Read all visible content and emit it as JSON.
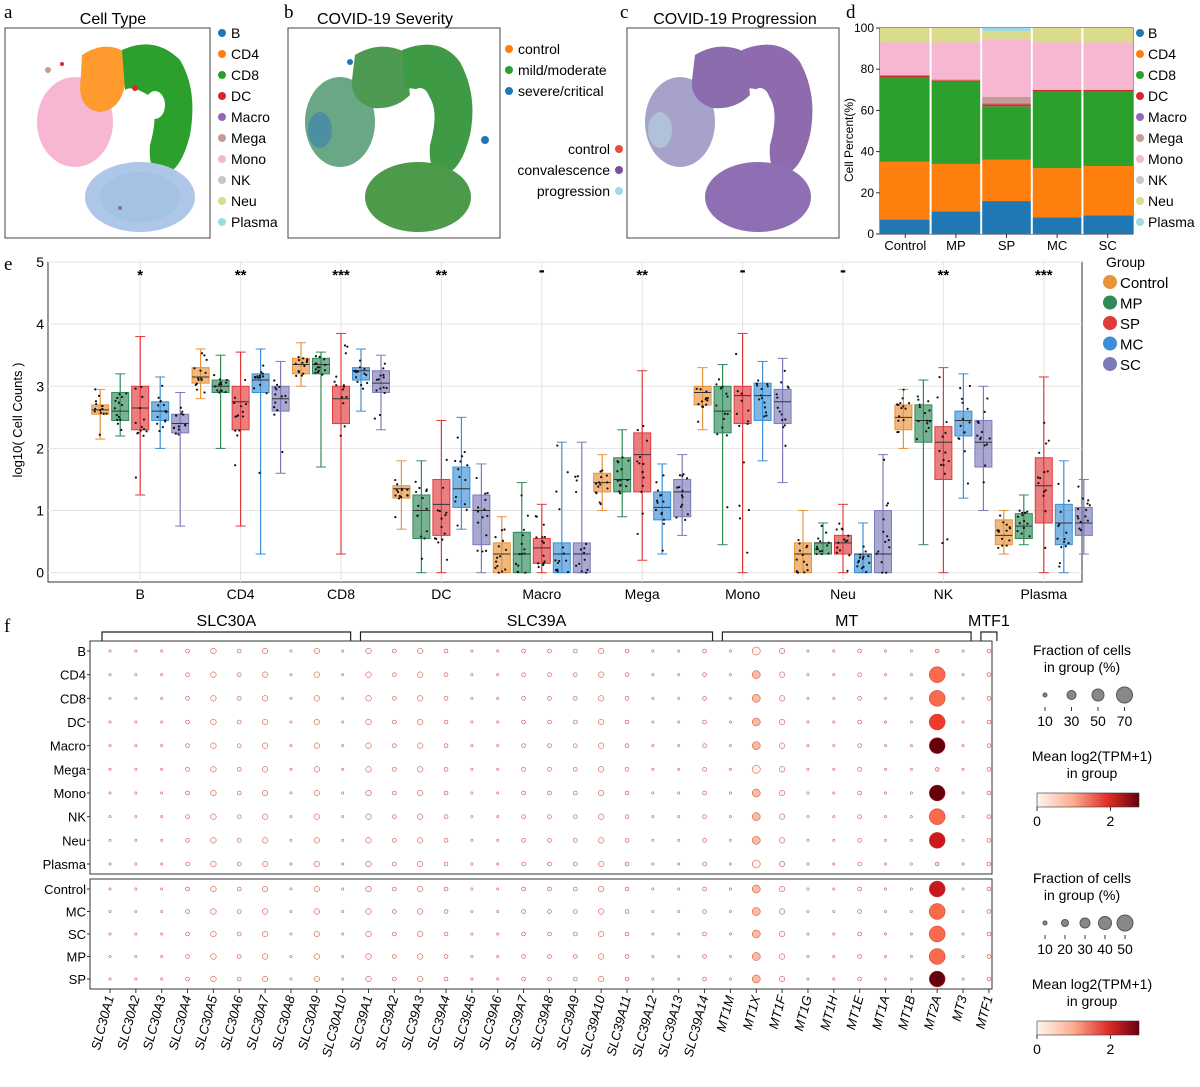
{
  "panels": {
    "a": {
      "letter": "a",
      "title": "Cell Type",
      "legend": [
        {
          "label": "B",
          "color": "#1f77b4"
        },
        {
          "label": "CD4",
          "color": "#ff7f0e"
        },
        {
          "label": "CD8",
          "color": "#2ca02c"
        },
        {
          "label": "DC",
          "color": "#d62728"
        },
        {
          "label": "Macro",
          "color": "#9467bd"
        },
        {
          "label": "Mega",
          "color": "#c49c94"
        },
        {
          "label": "Mono",
          "color": "#f7b6d2"
        },
        {
          "label": "NK",
          "color": "#c7c7c7"
        },
        {
          "label": "Neu",
          "color": "#dbdb8d"
        },
        {
          "label": "Plasma",
          "color": "#9edae5"
        }
      ]
    },
    "b": {
      "letter": "b",
      "title": "COVID-19 Severity",
      "legend": [
        {
          "label": "control",
          "color": "#ff7f0e"
        },
        {
          "label": "mild/moderate",
          "color": "#2ca02c"
        },
        {
          "label": "severe/critical",
          "color": "#1f77b4"
        }
      ]
    },
    "c": {
      "letter": "c",
      "title": "COVID-19 Progression",
      "legend": [
        {
          "label": "control",
          "color": "#e74c3c"
        },
        {
          "label": "convalescence",
          "color": "#7b4f9e"
        },
        {
          "label": "progression",
          "color": "#9edae5"
        }
      ]
    },
    "d": {
      "letter": "d"
    },
    "e": {
      "letter": "e"
    },
    "f": {
      "letter": "f"
    }
  },
  "chart_data": [
    {
      "panel": "d",
      "type": "bar",
      "stacked": true,
      "categories": [
        "Control",
        "MP",
        "SP",
        "MC",
        "SC"
      ],
      "ylabel": "Cell Percent(%)",
      "ylim": [
        0,
        100
      ],
      "yticks": [
        0,
        20,
        40,
        60,
        80,
        100
      ],
      "legend_position": "right",
      "series": [
        {
          "name": "B",
          "color": "#1f77b4",
          "values": [
            7,
            11,
            16,
            8,
            9
          ]
        },
        {
          "name": "CD4",
          "color": "#ff7f0e",
          "values": [
            28,
            23,
            20,
            24,
            24
          ]
        },
        {
          "name": "CD8",
          "color": "#2ca02c",
          "values": [
            41,
            40,
            26,
            37,
            36
          ]
        },
        {
          "name": "DC",
          "color": "#d62728",
          "values": [
            1,
            0.5,
            1,
            1,
            1
          ]
        },
        {
          "name": "Macro",
          "color": "#9467bd",
          "values": [
            0,
            0,
            0.5,
            0,
            0
          ]
        },
        {
          "name": "Mega",
          "color": "#c49c94",
          "values": [
            0,
            0.5,
            3,
            0,
            0
          ]
        },
        {
          "name": "Mono",
          "color": "#f7b6d2",
          "values": [
            16,
            18,
            28,
            23,
            23
          ]
        },
        {
          "name": "NK",
          "color": "#c7c7c7",
          "values": [
            0,
            0,
            0,
            0,
            0
          ]
        },
        {
          "name": "Neu",
          "color": "#dbdb8d",
          "values": [
            7,
            7,
            4,
            7,
            7
          ]
        },
        {
          "name": "Plasma",
          "color": "#9edae5",
          "values": [
            0,
            0,
            1.5,
            0,
            0
          ]
        }
      ]
    },
    {
      "panel": "e",
      "type": "box",
      "ylabel": "log10( Cell Counts )",
      "ylim": [
        0,
        5
      ],
      "yticks": [
        0,
        1,
        2,
        3,
        4,
        5
      ],
      "legend_title": "Group",
      "legend_position": "right",
      "groups": [
        {
          "name": "Control",
          "color": "#e8923a"
        },
        {
          "name": "MP",
          "color": "#2e8b57"
        },
        {
          "name": "SP",
          "color": "#e03a3a"
        },
        {
          "name": "MC",
          "color": "#3a8fd6"
        },
        {
          "name": "SC",
          "color": "#7b7bb8"
        }
      ],
      "categories": [
        "B",
        "CD4",
        "CD8",
        "DC",
        "Macro",
        "Mega",
        "Mono",
        "Neu",
        "NK",
        "Plasma"
      ],
      "significance": [
        "*",
        "**",
        "***",
        "**",
        "-",
        "**",
        "-",
        "-",
        "**",
        "***"
      ],
      "boxes": [
        [
          [
            2.15,
            2.55,
            2.62,
            2.7,
            2.95
          ],
          [
            2.2,
            2.45,
            2.6,
            2.9,
            3.2
          ],
          [
            1.25,
            2.3,
            2.65,
            3.0,
            3.8
          ],
          [
            2.0,
            2.45,
            2.6,
            2.75,
            3.15
          ],
          [
            0.75,
            2.25,
            2.4,
            2.55,
            2.9
          ]
        ],
        [
          [
            2.8,
            3.05,
            3.15,
            3.3,
            3.6
          ],
          [
            2.0,
            2.9,
            3.0,
            3.1,
            3.5
          ],
          [
            0.75,
            2.3,
            2.75,
            3.0,
            3.55
          ],
          [
            0.3,
            2.9,
            3.1,
            3.2,
            3.6
          ],
          [
            1.6,
            2.6,
            2.8,
            3.0,
            3.4
          ]
        ],
        [
          [
            3.0,
            3.2,
            3.35,
            3.45,
            3.7
          ],
          [
            1.7,
            3.2,
            3.35,
            3.45,
            3.55
          ],
          [
            0.3,
            2.4,
            2.8,
            3.0,
            3.85
          ],
          [
            2.6,
            3.1,
            3.25,
            3.3,
            3.6
          ],
          [
            2.3,
            2.9,
            3.05,
            3.25,
            3.5
          ]
        ],
        [
          [
            0.7,
            1.2,
            1.35,
            1.4,
            1.8
          ],
          [
            0.0,
            0.55,
            1.0,
            1.25,
            1.8
          ],
          [
            0.0,
            0.6,
            1.1,
            1.5,
            2.45
          ],
          [
            0.7,
            1.05,
            1.35,
            1.7,
            2.5
          ],
          [
            0.0,
            0.45,
            1.0,
            1.25,
            1.75
          ]
        ],
        [
          [
            0.0,
            0.0,
            0.3,
            0.48,
            0.9
          ],
          [
            0.0,
            0.0,
            0.3,
            0.65,
            1.45
          ],
          [
            0.0,
            0.15,
            0.4,
            0.55,
            1.1
          ],
          [
            0.0,
            0.0,
            0.3,
            0.48,
            2.1
          ],
          [
            0.0,
            0.0,
            0.3,
            0.48,
            2.1
          ]
        ],
        [
          [
            1.0,
            1.3,
            1.45,
            1.6,
            1.9
          ],
          [
            0.9,
            1.3,
            1.5,
            1.85,
            2.3
          ],
          [
            0.2,
            1.3,
            1.9,
            2.25,
            3.25
          ],
          [
            0.3,
            0.85,
            1.05,
            1.3,
            1.75
          ],
          [
            0.6,
            0.9,
            1.3,
            1.5,
            1.9
          ]
        ],
        [
          [
            2.3,
            2.7,
            2.9,
            3.0,
            3.3
          ],
          [
            0.45,
            2.25,
            2.6,
            3.0,
            3.35
          ],
          [
            0.0,
            2.4,
            2.85,
            3.0,
            3.85
          ],
          [
            1.8,
            2.45,
            2.85,
            3.05,
            3.4
          ],
          [
            1.45,
            2.4,
            2.75,
            2.95,
            3.45
          ]
        ],
        [
          [
            0.0,
            0.0,
            0.3,
            0.48,
            1.0
          ],
          [
            0.3,
            0.3,
            0.48,
            0.48,
            0.8
          ],
          [
            0.0,
            0.3,
            0.48,
            0.6,
            1.1
          ],
          [
            0.0,
            0.0,
            0.3,
            0.3,
            0.8
          ],
          [
            0.0,
            0.0,
            0.3,
            1.0,
            1.9
          ]
        ],
        [
          [
            2.0,
            2.3,
            2.5,
            2.7,
            2.95
          ],
          [
            0.45,
            2.1,
            2.45,
            2.7,
            3.1
          ],
          [
            0.0,
            1.5,
            2.1,
            2.35,
            3.3
          ],
          [
            1.2,
            2.2,
            2.45,
            2.6,
            3.2
          ],
          [
            1.0,
            1.7,
            2.1,
            2.45,
            3.0
          ]
        ],
        [
          [
            0.3,
            0.45,
            0.6,
            0.85,
            1.0
          ],
          [
            0.45,
            0.55,
            0.75,
            0.95,
            1.25
          ],
          [
            0.0,
            0.8,
            1.4,
            1.85,
            3.15
          ],
          [
            0.0,
            0.45,
            0.8,
            1.1,
            1.8
          ],
          [
            0.3,
            0.6,
            0.8,
            1.05,
            1.5
          ]
        ]
      ]
    },
    {
      "panel": "f",
      "type": "dotplot",
      "gene_groups": [
        {
          "name": "SLC30A",
          "start": 0,
          "end": 9
        },
        {
          "name": "SLC39A",
          "start": 10,
          "end": 23
        },
        {
          "name": "MT",
          "start": 24,
          "end": 33
        },
        {
          "name": "MTF1",
          "start": 34,
          "end": 34
        }
      ],
      "genes": [
        "SLC30A1",
        "SLC30A2",
        "SLC30A3",
        "SLC30A4",
        "SLC30A5",
        "SLC30A6",
        "SLC30A7",
        "SLC30A8",
        "SLC30A9",
        "SLC30A10",
        "SLC39A1",
        "SLC39A2",
        "SLC39A3",
        "SLC39A4",
        "SLC39A5",
        "SLC39A6",
        "SLC39A7",
        "SLC39A8",
        "SLC39A9",
        "SLC39A10",
        "SLC39A11",
        "SLC39A12",
        "SLC39A13",
        "SLC39A14",
        "MT1M",
        "MT1X",
        "MT1F",
        "MT1G",
        "MT1H",
        "MT1E",
        "MT1A",
        "MT1B",
        "MT2A",
        "MT3",
        "MTF1"
      ],
      "rows_top": [
        "B",
        "CD4",
        "CD8",
        "DC",
        "Macro",
        "Mega",
        "Mono",
        "NK",
        "Neu",
        "Plasma"
      ],
      "rows_bottom": [
        "Control",
        "MC",
        "SC",
        "MP",
        "SP"
      ],
      "hot_top": {
        "Macro": 3.0,
        "Mono": 3.0,
        "Neu": 2.3,
        "CD4": 1.3,
        "CD8": 1.4,
        "DC": 1.7,
        "NK": 1.4,
        "B": 0.2,
        "Mega": 0.1,
        "Plasma": 0.1
      },
      "hot_bottom": {
        "Control": 2.2,
        "MC": 1.4,
        "SC": 1.5,
        "MP": 1.6,
        "SP": 2.8
      },
      "legend_top": {
        "size_title1": "Fraction of cells",
        "size_title2": "in group (%)",
        "size_ticks": [
          "10",
          "30",
          "50",
          "70"
        ],
        "color_title1": "Mean log2(TPM+1)",
        "color_title2": "in group",
        "color_ticks": [
          "0",
          "2"
        ]
      },
      "legend_bottom": {
        "size_title1": "Fraction of cells",
        "size_title2": "in group (%)",
        "size_ticks": [
          "10",
          "20",
          "30",
          "40",
          "50"
        ],
        "color_title1": "Mean log2(TPM+1)",
        "color_title2": "in group",
        "color_ticks": [
          "0",
          "2"
        ]
      }
    }
  ]
}
